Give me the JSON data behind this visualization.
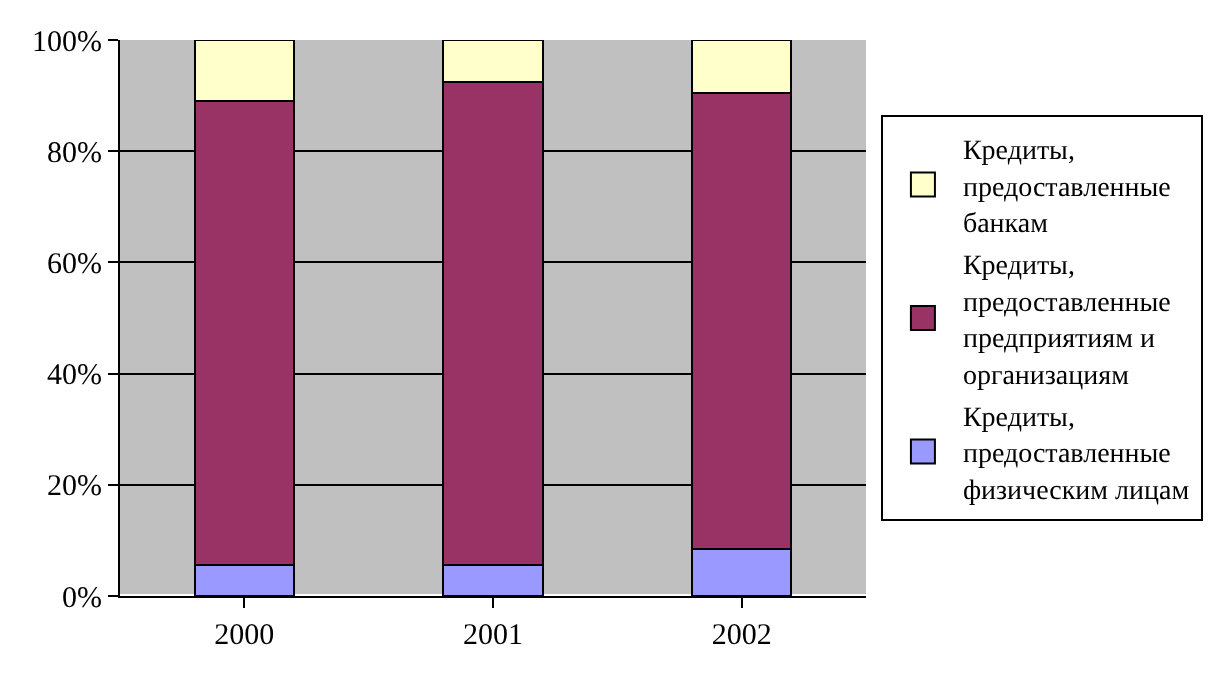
{
  "chart_data": {
    "type": "bar",
    "stacked": true,
    "categories": [
      "2000",
      "2001",
      "2002"
    ],
    "series": [
      {
        "name": "Кредиты, предоставленные физическим лицам",
        "color": "#9999ff",
        "values": [
          5.5,
          5.5,
          8.5
        ]
      },
      {
        "name": "Кредиты, предоставленные предприятиям и организациям",
        "color": "#993366",
        "values": [
          83.5,
          87,
          82
        ]
      },
      {
        "name": "Кредиты, предоставленные банкам",
        "color": "#ffffcc",
        "values": [
          11,
          7.5,
          9.5
        ]
      }
    ],
    "ylim": [
      0,
      100
    ],
    "yticks": [
      {
        "value": 0,
        "label": "0%"
      },
      {
        "value": 20,
        "label": "20%"
      },
      {
        "value": 40,
        "label": "40%"
      },
      {
        "value": 60,
        "label": "60%"
      },
      {
        "value": 80,
        "label": "80%"
      },
      {
        "value": 100,
        "label": "100%"
      }
    ],
    "grid": "y",
    "legend": "right"
  }
}
